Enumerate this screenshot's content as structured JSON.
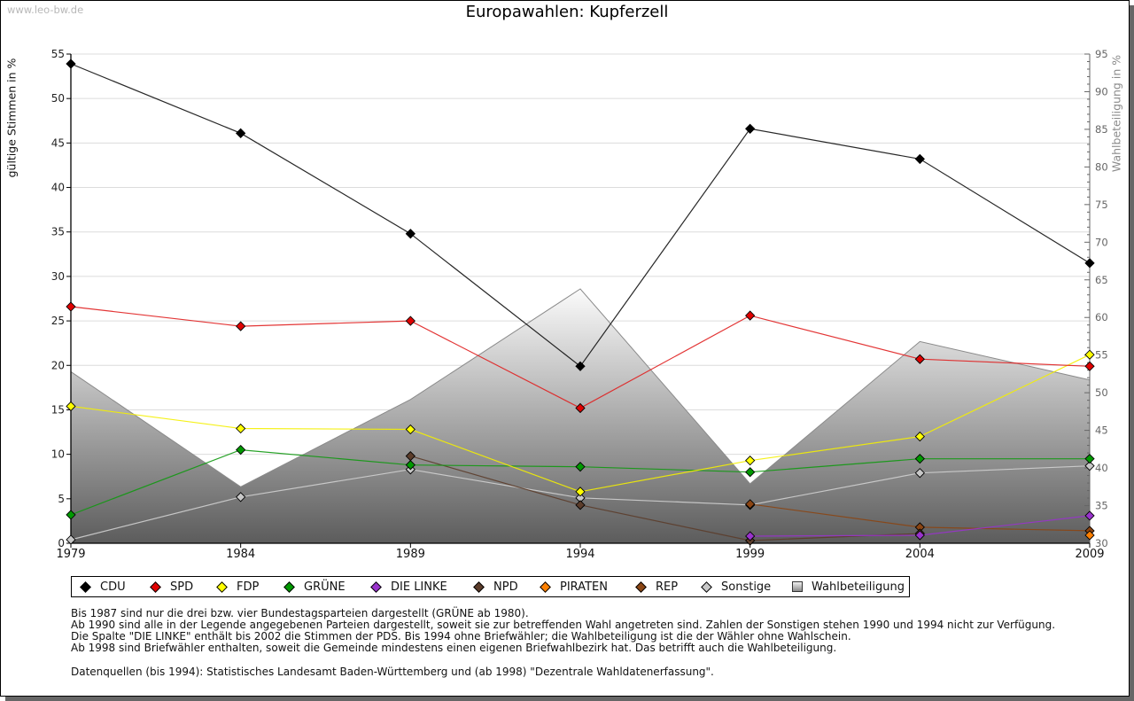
{
  "watermark": "www.leo-bw.de",
  "chart_data": {
    "type": "line",
    "title": "Europawahlen: Kupferzell",
    "xlabel": "",
    "ylabel": "gültige Stimmen in %",
    "ylabel_right": "Wahlbeteiligung in %",
    "x": [
      1979,
      1984,
      1989,
      1994,
      1999,
      2004,
      2009
    ],
    "x_ticks": [
      "1979",
      "1984",
      "1989",
      "1994",
      "1999",
      "2004",
      "2009"
    ],
    "ylim": [
      0,
      55
    ],
    "y_ticks": [
      "0",
      "5",
      "10",
      "15",
      "20",
      "25",
      "30",
      "35",
      "40",
      "45",
      "50",
      "55"
    ],
    "ylim_right": [
      30,
      95
    ],
    "y_right_ticks": [
      "30",
      "35",
      "40",
      "45",
      "50",
      "55",
      "60",
      "65",
      "70",
      "75",
      "80",
      "85",
      "90",
      "95"
    ],
    "grid": true,
    "area_series": {
      "name": "Wahlbeteiligung",
      "axis": "right",
      "values": [
        52.8,
        37.5,
        49.1,
        63.8,
        37.9,
        56.8,
        51.7
      ]
    },
    "series": [
      {
        "name": "CDU",
        "key": "cdu",
        "color": "#000000",
        "line_color": "#111111",
        "axis": "left",
        "values": [
          53.9,
          46.1,
          34.8,
          19.9,
          46.6,
          43.2,
          31.5
        ]
      },
      {
        "name": "SPD",
        "key": "spd",
        "color": "#e00000",
        "line_color": "#e02020",
        "axis": "left",
        "values": [
          26.6,
          24.4,
          25.0,
          15.2,
          25.6,
          20.7,
          19.9
        ]
      },
      {
        "name": "FDP",
        "key": "fdp",
        "color": "#ffff00",
        "line_color": "#f4f000",
        "axis": "left",
        "values": [
          15.4,
          12.9,
          12.8,
          5.8,
          9.3,
          12.0,
          21.2
        ]
      },
      {
        "name": "GRÜNE",
        "key": "gruene",
        "color": "#009900",
        "line_color": "#119911",
        "axis": "left",
        "values": [
          3.2,
          10.5,
          8.8,
          8.6,
          8.0,
          9.5,
          9.5
        ]
      },
      {
        "name": "DIE LINKE",
        "key": "die-linke",
        "color": "#9933cc",
        "line_color": "#9933cc",
        "axis": "left",
        "values": [
          null,
          null,
          null,
          null,
          0.8,
          0.9,
          3.1
        ]
      },
      {
        "name": "NPD",
        "key": "npd",
        "color": "#5c3d2b",
        "line_color": "#5c3d2b",
        "axis": "left",
        "values": [
          null,
          null,
          9.8,
          4.3,
          0.3,
          1.1,
          null
        ]
      },
      {
        "name": "PIRATEN",
        "key": "piraten",
        "color": "#ff8000",
        "line_color": "#ff8000",
        "axis": "left",
        "values": [
          null,
          null,
          null,
          null,
          null,
          null,
          0.9
        ]
      },
      {
        "name": "REP",
        "key": "rep",
        "color": "#8b4513",
        "line_color": "#8b4513",
        "axis": "left",
        "values": [
          null,
          null,
          null,
          null,
          4.4,
          1.8,
          1.4
        ]
      },
      {
        "name": "Sonstige",
        "key": "sonstige",
        "color": "#c8c8c8",
        "line_color": "#cfcfcf",
        "axis": "left",
        "values": [
          0.4,
          5.2,
          8.3,
          5.1,
          4.3,
          7.9,
          8.7
        ]
      }
    ],
    "legend": {
      "placement": "bottom",
      "entries": [
        {
          "label": "CDU",
          "color": "#000000"
        },
        {
          "label": "SPD",
          "color": "#e00000"
        },
        {
          "label": "FDP",
          "color": "#ffff00"
        },
        {
          "label": "GRÜNE",
          "color": "#009900"
        },
        {
          "label": "DIE LINKE",
          "color": "#9933cc"
        },
        {
          "label": "NPD",
          "color": "#5c3d2b"
        },
        {
          "label": "PIRATEN",
          "color": "#ff8000"
        },
        {
          "label": "REP",
          "color": "#8b4513"
        },
        {
          "label": "Sonstige",
          "color": "#c8c8c8"
        },
        {
          "label": "Wahlbeteiligung",
          "color": "#a0a0a0"
        }
      ]
    }
  },
  "notes": [
    "Bis 1987 sind nur die drei bzw. vier Bundestagsparteien dargestellt (GRÜNE ab 1980).",
    "Ab 1990 sind alle in der Legende angegebenen Parteien dargestellt, soweit sie zur betreffenden Wahl angetreten sind. Zahlen der Sonstigen stehen 1990 und 1994 nicht zur Verfügung.",
    "Die Spalte \"DIE LINKE\" enthält bis 2002 die Stimmen der PDS. Bis 1994 ohne Briefwähler; die Wahlbeteiligung ist die der Wähler ohne Wahlschein.",
    "Ab 1998 sind Briefwähler enthalten, soweit die Gemeinde mindestens einen eigenen Briefwahlbezirk hat. Das betrifft auch die Wahlbeteiligung."
  ],
  "source": "Datenquellen (bis 1994): Statistisches Landesamt Baden-Württemberg und (ab 1998) \"Dezentrale Wahldatenerfassung\"."
}
